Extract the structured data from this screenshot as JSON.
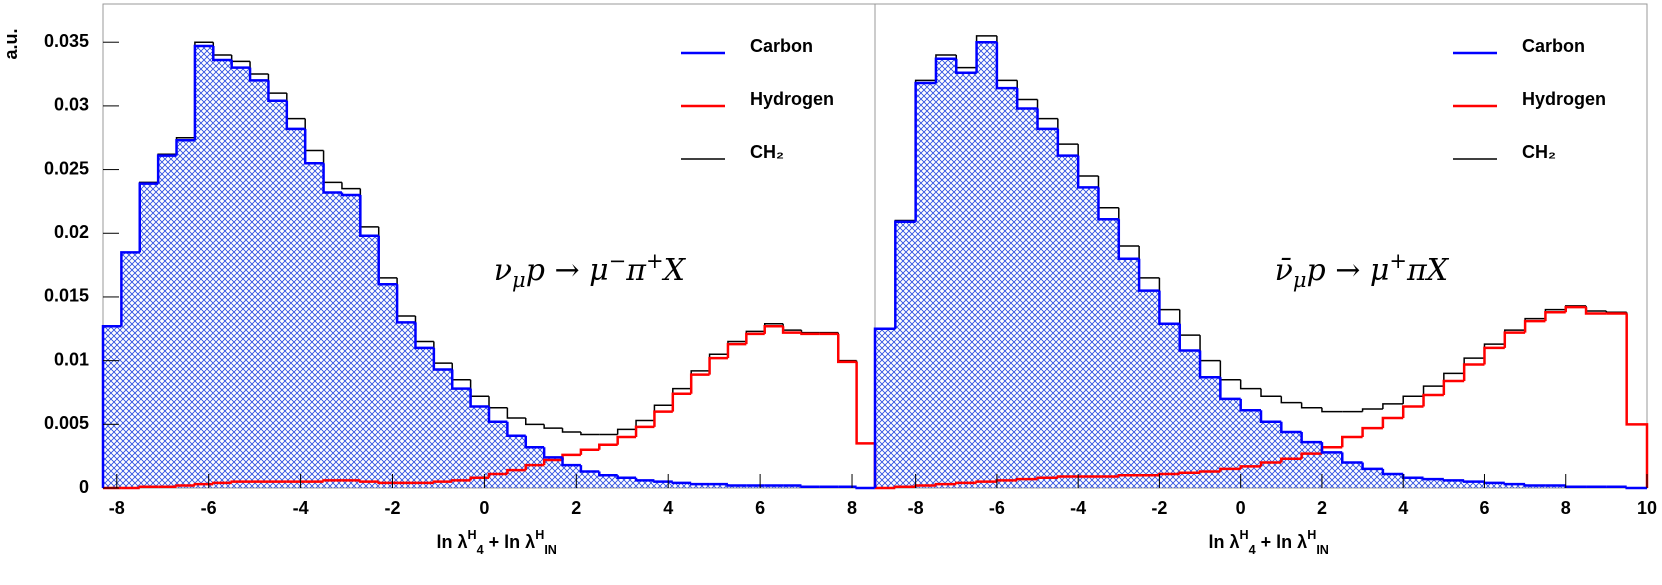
{
  "chart_data": [
    {
      "type": "histogram",
      "y_label": "a.u.",
      "x_label": [
        "ln λ",
        {
          "text": "H",
          "shift": "sup"
        },
        {
          "text": "4",
          "shift": "sub"
        },
        " + ln λ",
        {
          "text": "H",
          "shift": "sup"
        },
        {
          "text": "IN",
          "shift": "sub"
        }
      ],
      "annotation": [
        "ν",
        {
          "text": "μ",
          "shift": "sub"
        },
        "p → μ",
        {
          "text": "−",
          "shift": "sup"
        },
        "π",
        {
          "text": "+",
          "shift": "sup"
        },
        "X"
      ],
      "legend": "upper right",
      "xlim": [
        -8.3,
        8.5
      ],
      "xticks": [
        -8,
        -6,
        -4,
        -2,
        0,
        2,
        4,
        6,
        8
      ],
      "ylim": [
        0,
        0.038
      ],
      "yticks": [
        0,
        0.005,
        0.01,
        0.015,
        0.02,
        0.025,
        0.03,
        0.035
      ],
      "bins": [
        -8.3,
        -7.9,
        -7.5,
        -7.1,
        -6.7,
        -6.3,
        -5.9,
        -5.5,
        -5.1,
        -4.7,
        -4.3,
        -3.9,
        -3.5,
        -3.1,
        -2.7,
        -2.3,
        -1.9,
        -1.5,
        -1.1,
        -0.7,
        -0.3,
        0.1,
        0.5,
        0.9,
        1.3,
        1.7,
        2.1,
        2.5,
        2.9,
        3.3,
        3.7,
        4.1,
        4.5,
        4.9,
        5.3,
        5.7,
        6.1,
        6.5,
        6.9,
        7.3,
        7.7,
        8.1,
        8.5
      ],
      "series": [
        {
          "name": "Carbon",
          "color": "#0000ff",
          "hatch": true,
          "values": [
            0.0127,
            0.0185,
            0.0239,
            0.0261,
            0.0273,
            0.0347,
            0.0336,
            0.033,
            0.032,
            0.0304,
            0.0282,
            0.0255,
            0.0232,
            0.023,
            0.0198,
            0.016,
            0.013,
            0.011,
            0.0093,
            0.0078,
            0.0064,
            0.0052,
            0.0041,
            0.0032,
            0.0024,
            0.0018,
            0.0013,
            0.001,
            0.0008,
            0.0006,
            0.0005,
            0.0004,
            0.0003,
            0.0003,
            0.0002,
            0.0002,
            0.0002,
            0.0002,
            0.0001,
            0.0001,
            0.0001,
            0.0
          ]
        },
        {
          "name": "Hydrogen",
          "color": "#ff0000",
          "values": [
            0.0,
            0.0,
            0.0001,
            0.0001,
            0.0002,
            0.0003,
            0.0004,
            0.0005,
            0.0005,
            0.0005,
            0.0005,
            0.0005,
            0.0006,
            0.0006,
            0.0005,
            0.0004,
            0.0004,
            0.0004,
            0.0005,
            0.0006,
            0.0008,
            0.0011,
            0.0014,
            0.0018,
            0.0022,
            0.0026,
            0.003,
            0.0034,
            0.004,
            0.0048,
            0.006,
            0.0074,
            0.0089,
            0.0102,
            0.0113,
            0.0121,
            0.0127,
            0.0122,
            0.0121,
            0.0121,
            0.0099,
            0.0035
          ]
        },
        {
          "name": "CH₂",
          "color": "#000000",
          "values": [
            0.0127,
            0.0185,
            0.024,
            0.0262,
            0.0275,
            0.035,
            0.034,
            0.0335,
            0.0325,
            0.031,
            0.029,
            0.0265,
            0.024,
            0.0235,
            0.0205,
            0.0165,
            0.0135,
            0.0115,
            0.0098,
            0.0085,
            0.0072,
            0.0063,
            0.0055,
            0.005,
            0.0047,
            0.0044,
            0.0042,
            0.0042,
            0.0046,
            0.0053,
            0.0065,
            0.0078,
            0.0092,
            0.0105,
            0.0115,
            0.0123,
            0.0129,
            0.0124,
            0.0122,
            0.0122,
            0.01,
            0.0035
          ]
        }
      ]
    },
    {
      "type": "histogram",
      "x_label": [
        "ln λ",
        {
          "text": "H",
          "shift": "sup"
        },
        {
          "text": "4",
          "shift": "sub"
        },
        " + ln λ",
        {
          "text": "H",
          "shift": "sup"
        },
        {
          "text": "IN",
          "shift": "sub"
        }
      ],
      "annotation": [
        "ν̄",
        {
          "text": "μ",
          "shift": "sub"
        },
        "p → μ",
        {
          "text": "+",
          "shift": "sup"
        },
        "πX"
      ],
      "legend": "upper right",
      "xlim": [
        -9,
        10
      ],
      "xticks": [
        -8,
        -6,
        -4,
        -2,
        0,
        2,
        4,
        6,
        8,
        10
      ],
      "ylim": [
        0,
        0.038
      ],
      "bins": [
        -9,
        -8.5,
        -8,
        -7.5,
        -7,
        -6.5,
        -6,
        -5.5,
        -5,
        -4.5,
        -4,
        -3.5,
        -3,
        -2.5,
        -2,
        -1.5,
        -1,
        -0.5,
        0,
        0.5,
        1,
        1.5,
        2,
        2.5,
        3,
        3.5,
        4,
        4.5,
        5,
        5.5,
        6,
        6.5,
        7,
        7.5,
        8,
        8.5,
        9,
        9.5,
        10
      ],
      "series": [
        {
          "name": "Carbon",
          "color": "#0000ff",
          "hatch": true,
          "values": [
            0.0125,
            0.0209,
            0.0318,
            0.0337,
            0.0326,
            0.035,
            0.0314,
            0.0298,
            0.0282,
            0.0261,
            0.0236,
            0.0211,
            0.018,
            0.0155,
            0.0129,
            0.0108,
            0.0087,
            0.007,
            0.0061,
            0.0052,
            0.0044,
            0.0036,
            0.0028,
            0.002,
            0.0015,
            0.0011,
            0.0008,
            0.0007,
            0.0006,
            0.0005,
            0.0004,
            0.0003,
            0.0002,
            0.0002,
            0.0001,
            0.0001,
            0.0001,
            0.0
          ]
        },
        {
          "name": "Hydrogen",
          "color": "#ff0000",
          "values": [
            0.0,
            0.0001,
            0.0002,
            0.0003,
            0.0004,
            0.0005,
            0.0006,
            0.0007,
            0.0008,
            0.0009,
            0.0009,
            0.0009,
            0.001,
            0.001,
            0.0011,
            0.0012,
            0.0013,
            0.0015,
            0.0017,
            0.002,
            0.0023,
            0.0027,
            0.0032,
            0.004,
            0.0047,
            0.0055,
            0.0064,
            0.0073,
            0.0084,
            0.0097,
            0.011,
            0.0122,
            0.0131,
            0.0138,
            0.0142,
            0.0137,
            0.0137,
            0.005
          ]
        },
        {
          "name": "CH₂",
          "color": "#000000",
          "values": [
            0.0125,
            0.021,
            0.032,
            0.034,
            0.033,
            0.0355,
            0.032,
            0.0305,
            0.029,
            0.027,
            0.0245,
            0.022,
            0.019,
            0.0165,
            0.014,
            0.012,
            0.01,
            0.0085,
            0.0078,
            0.0072,
            0.0067,
            0.0063,
            0.006,
            0.006,
            0.0062,
            0.0066,
            0.0072,
            0.008,
            0.009,
            0.0102,
            0.0113,
            0.0124,
            0.0133,
            0.014,
            0.0143,
            0.0139,
            0.0138,
            0.005
          ]
        }
      ]
    }
  ]
}
